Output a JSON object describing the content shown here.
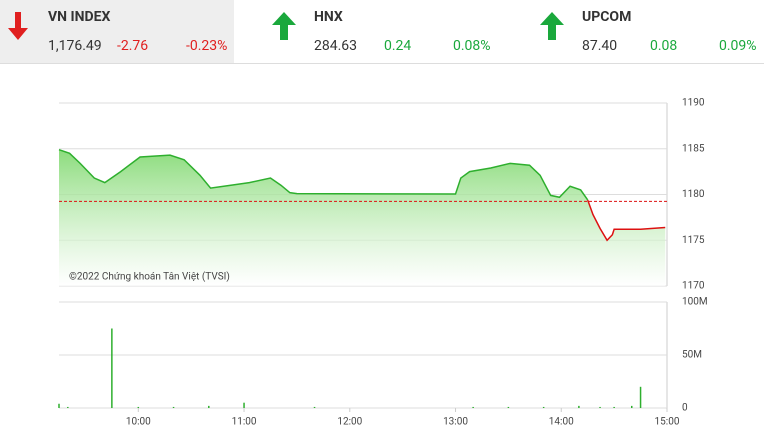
{
  "indices": [
    {
      "name": "VN INDEX",
      "value": "1,176.49",
      "change": "-2.76",
      "percent": "-0.23%"
    },
    {
      "name": "HNX",
      "value": "284.63",
      "change": "0.24",
      "percent": "0.08%"
    },
    {
      "name": "UPCOM",
      "value": "87.40",
      "change": "0.08",
      "percent": "0.09%"
    }
  ],
  "chart_data": [
    {
      "type": "area",
      "annotation": "©2022 Chứng khoán Tân Việt (TVSI)",
      "x": [
        555,
        561,
        567,
        575,
        581,
        590,
        601,
        618,
        626,
        635,
        641,
        652,
        663,
        675,
        681,
        686,
        690,
        780,
        783,
        788,
        800,
        811,
        822,
        828,
        834,
        839,
        845,
        851,
        855,
        858,
        862,
        866,
        869,
        870,
        885,
        899
      ],
      "values": [
        1184.9,
        1184.5,
        1183.4,
        1181.8,
        1181.3,
        1182.5,
        1184.1,
        1184.3,
        1183.8,
        1182.1,
        1180.7,
        1181.0,
        1181.3,
        1181.8,
        1181.0,
        1180.2,
        1180.1,
        1180.05,
        1181.8,
        1182.5,
        1182.9,
        1183.4,
        1183.2,
        1182.1,
        1179.9,
        1179.7,
        1180.9,
        1180.5,
        1179.4,
        1177.8,
        1176.3,
        1175.0,
        1175.6,
        1176.2,
        1176.2,
        1176.4
      ],
      "color": "#2eaf2e",
      "down_color": "#d11",
      "fill_color": "#7fd86e",
      "reference": 1179.25,
      "xlim": [
        555,
        900
      ],
      "ylim": [
        1170,
        1190
      ],
      "yticks": [
        1170,
        1175,
        1180,
        1185,
        1190
      ],
      "grid": true
    },
    {
      "type": "bar",
      "x": [
        555,
        560,
        585,
        600,
        620,
        640,
        660,
        700,
        790,
        810,
        830,
        850,
        862,
        870,
        880,
        885
      ],
      "values": [
        4,
        1,
        75,
        1,
        1,
        2,
        5,
        1,
        1,
        1,
        1,
        2,
        1,
        1,
        2,
        20
      ],
      "color": "#2eaf2e",
      "xlim": [
        555,
        900
      ],
      "ylim": [
        0,
        100
      ],
      "yticks": [
        0,
        {
          "value": 50,
          "label": "50M"
        },
        {
          "value": 100,
          "label": "100M"
        }
      ],
      "xticks": [
        {
          "value": 600,
          "label": "10:00"
        },
        {
          "value": 660,
          "label": "11:00"
        },
        {
          "value": 720,
          "label": "12:00"
        },
        {
          "value": 780,
          "label": "13:00"
        },
        {
          "value": 840,
          "label": "14:00"
        },
        {
          "value": 900,
          "label": "15:00"
        }
      ],
      "grid": true
    }
  ]
}
